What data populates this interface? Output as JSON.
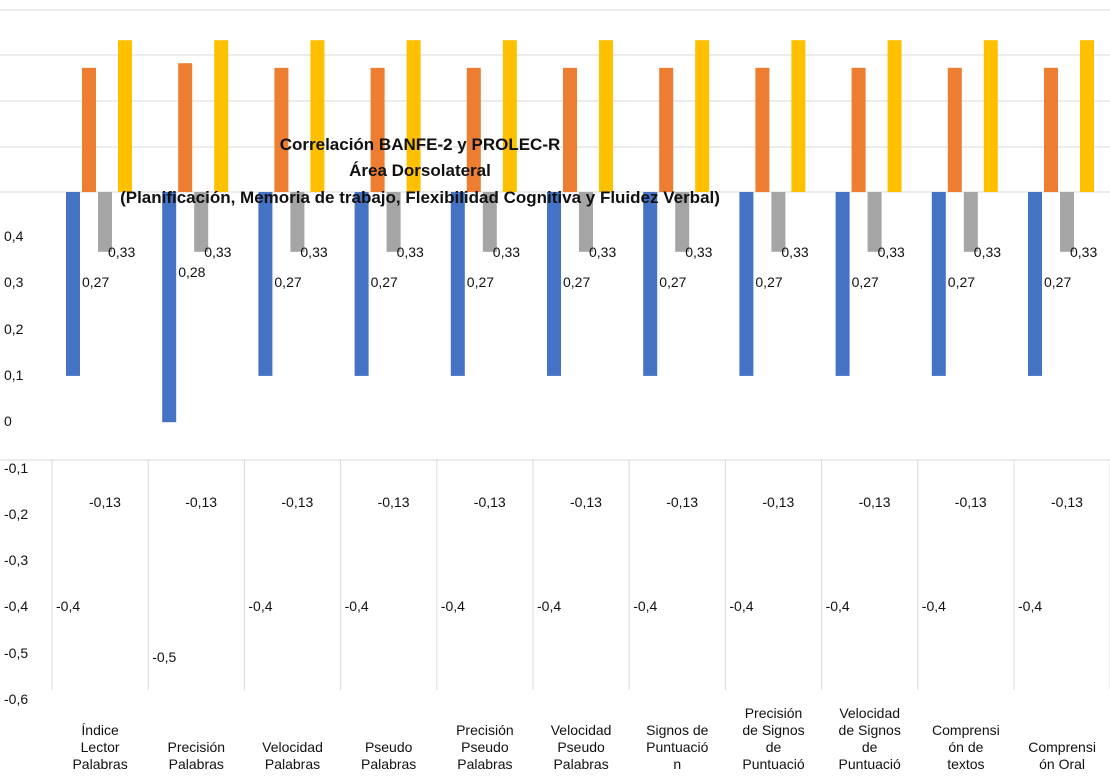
{
  "chart_data": {
    "type": "bar",
    "title": [
      "Correlación BANFE-2 y PROLEC-R",
      "Área Dorsolateral",
      "(Planificación, Memoria de trabajo, Flexibilidad Cognitiva y Fluidez Verbal)"
    ],
    "xlabel": "",
    "ylabel": "",
    "ylim": [
      -0.6,
      0.4
    ],
    "yticks": [
      "0,4",
      "0,3",
      "0,2",
      "0,1",
      "0",
      "-0,1",
      "-0,2",
      "-0,3",
      "-0,4",
      "-0,5",
      "-0,6"
    ],
    "grid": true,
    "categories": [
      "Índice Lector Palabras",
      "Precisión Palabras",
      "Velocidad Palabras",
      "Pseudo Palabras",
      "Precisión Pseudo Palabras",
      "Velocidad Pseudo Palabras",
      "Signos de Puntuación",
      "Precisión de Signos de Puntuación",
      "Velocidad de Signos de Puntuación",
      "Comprensión de textos",
      "Comprensión Oral"
    ],
    "category_labels_visible": [
      [
        "Índice",
        "Lector",
        "Palabras"
      ],
      [
        "Precisión",
        "Palabras"
      ],
      [
        "Velocidad",
        "Palabras"
      ],
      [
        "Pseudo",
        "Palabras"
      ],
      [
        "Precisión",
        "Pseudo",
        "Palabras"
      ],
      [
        "Velocidad",
        "Pseudo",
        "Palabras"
      ],
      [
        "Signos de",
        "Puntuació",
        "n"
      ],
      [
        "Precisión",
        "de Signos",
        "de",
        "Puntuació"
      ],
      [
        "Velocidad",
        "de Signos",
        "de",
        "Puntuació"
      ],
      [
        "Comprensi",
        "ón de",
        "textos"
      ],
      [
        "Comprensi",
        "ón Oral"
      ]
    ],
    "series": [
      {
        "color": "#4472C4",
        "values": [
          -0.4,
          -0.5,
          -0.4,
          -0.4,
          -0.4,
          -0.4,
          -0.4,
          -0.4,
          -0.4,
          -0.4,
          -0.4
        ],
        "labels": [
          "-0,4",
          "-0,5",
          "-0,4",
          "-0,4",
          "-0,4",
          "-0,4",
          "-0,4",
          "-0,4",
          "-0,4",
          "-0,4",
          "-0,4"
        ]
      },
      {
        "color": "#ED7D31",
        "values": [
          0.27,
          0.28,
          0.27,
          0.27,
          0.27,
          0.27,
          0.27,
          0.27,
          0.27,
          0.27,
          0.27
        ],
        "labels": [
          "0,27",
          "0,28",
          "0,27",
          "0,27",
          "0,27",
          "0,27",
          "0,27",
          "0,27",
          "0,27",
          "0,27",
          "0,27"
        ]
      },
      {
        "color": "#A5A5A5",
        "values": [
          -0.13,
          -0.13,
          -0.13,
          -0.13,
          -0.13,
          -0.13,
          -0.13,
          -0.13,
          -0.13,
          -0.13,
          -0.13
        ],
        "labels": [
          "-0,13",
          "-0,13",
          "-0,13",
          "-0,13",
          "-0,13",
          "-0,13",
          "-0,13",
          "-0,13",
          "-0,13",
          "-0,13",
          "-0,13"
        ]
      },
      {
        "color": "#FFC000",
        "values": [
          0.33,
          0.33,
          0.33,
          0.33,
          0.33,
          0.33,
          0.33,
          0.33,
          0.33,
          0.33,
          0.33
        ],
        "labels": [
          "0,33",
          "0,33",
          "0,33",
          "0,33",
          "0,33",
          "0,33",
          "0,33",
          "0,33",
          "0,33",
          "0,33",
          "0,33"
        ]
      }
    ]
  }
}
